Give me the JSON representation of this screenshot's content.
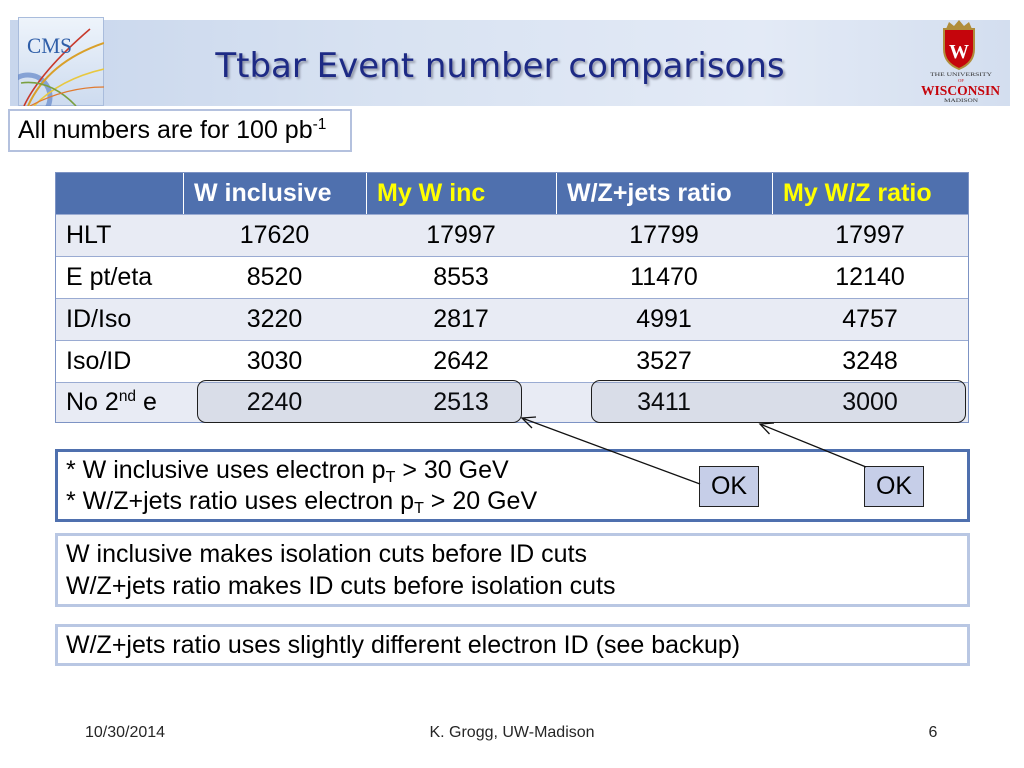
{
  "slide": {
    "title": "Ttbar Event number comparisons",
    "note": {
      "text": "All numbers are for 100 pb",
      "sup": "-1"
    }
  },
  "logos": {
    "cms": "CMS",
    "uw": {
      "crest_letter": "W",
      "line1": "THE UNIVERSITY",
      "line2": "OF",
      "line3": "WISCONSIN",
      "line4": "MADISON"
    }
  },
  "table": {
    "columns": [
      {
        "label": "W inclusive",
        "color": "#ffffff"
      },
      {
        "label": "My W inc",
        "color": "#ffff00"
      },
      {
        "label": "W/Z+jets ratio",
        "color": "#ffffff"
      },
      {
        "label": "My W/Z ratio",
        "color": "#ffff00"
      }
    ],
    "rows": [
      {
        "label": "HLT",
        "values": [
          17620,
          17997,
          17799,
          17997
        ]
      },
      {
        "label": "E pt/eta",
        "values": [
          8520,
          8553,
          11470,
          12140
        ]
      },
      {
        "label": "ID/Iso",
        "values": [
          3220,
          2817,
          4991,
          4757
        ]
      },
      {
        "label": "Iso/ID",
        "values": [
          3030,
          2642,
          3527,
          3248
        ]
      },
      {
        "label": "No 2",
        "label_sup": "nd",
        "label_tail": " e",
        "values": [
          2240,
          2513,
          3411,
          3000
        ]
      }
    ]
  },
  "cuts_box": {
    "lines": [
      {
        "pre": "* W inclusive uses electron p",
        "sub": "T",
        "post": " > 30 GeV"
      },
      {
        "pre": "* W/Z+jets ratio uses electron p",
        "sub": "T",
        "post": " > 20 GeV"
      }
    ],
    "ok_labels": [
      "OK",
      "OK"
    ]
  },
  "order_box": {
    "lines": [
      "W inclusive makes isolation cuts before ID cuts",
      "W/Z+jets ratio makes ID cuts before isolation cuts"
    ]
  },
  "id_box": {
    "text": "W/Z+jets ratio uses slightly different electron ID (see backup)"
  },
  "footer": {
    "date": "10/30/2014",
    "author": "K. Grogg, UW-Madison",
    "page": "6"
  },
  "colors": {
    "title": "#1d2a85",
    "header_bg": "#4f70ae",
    "row_shade": "#e8ebf4",
    "ok_fill": "#c6cee8",
    "uw_red": "#c5050c",
    "cms_blue": "#2f5ea8"
  }
}
